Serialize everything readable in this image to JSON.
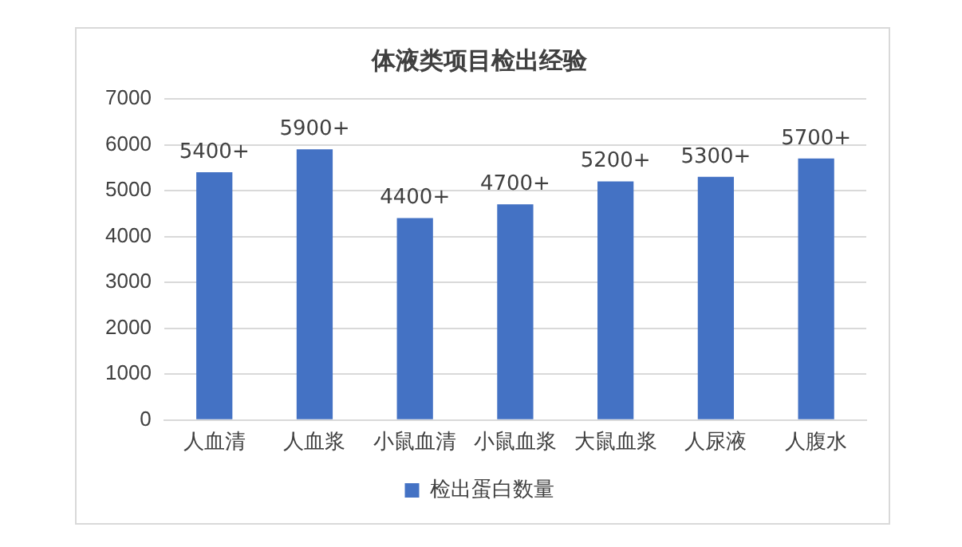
{
  "chart_data": {
    "type": "bar",
    "title": "体液类项目检出经验",
    "categories": [
      "人血清",
      "人血浆",
      "小鼠血清",
      "小鼠血浆",
      "大鼠血浆",
      "人尿液",
      "人腹水"
    ],
    "series": [
      {
        "name": "检出蛋白数量",
        "color": "#4472c4",
        "values": [
          5400,
          5900,
          4400,
          4700,
          5200,
          5300,
          5700
        ],
        "value_labels": [
          "5400+",
          "5900+",
          "4400+",
          "4700+",
          "5200+",
          "5300+",
          "5700+"
        ]
      }
    ],
    "ylim": [
      0,
      7000
    ],
    "yticks": [
      0,
      1000,
      2000,
      3000,
      4000,
      5000,
      6000,
      7000
    ],
    "grid": "y",
    "legend": "bottom"
  }
}
